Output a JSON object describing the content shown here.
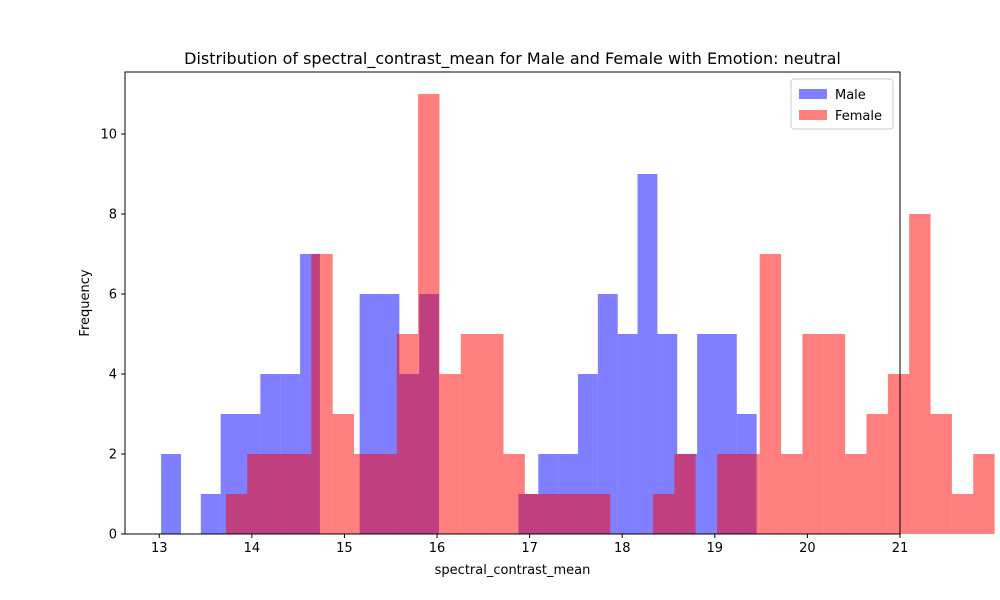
{
  "chart_data": {
    "type": "bar",
    "title": "Distribution of spectral_contrast_mean for Male and Female with Emotion: neutral",
    "xlabel": "spectral_contrast_mean",
    "ylabel": "Frequency",
    "xlim": [
      12.63,
      21.0
    ],
    "ylim": [
      0,
      11.55
    ],
    "xticks": [
      "13",
      "14",
      "15",
      "16",
      "17",
      "18",
      "19",
      "20",
      "21"
    ],
    "yticks": [
      "0",
      "2",
      "4",
      "6",
      "8",
      "10"
    ],
    "legend_position": "top-right",
    "series": [
      {
        "name": "Male",
        "color": "#0000ff",
        "opacity": 0.5,
        "bin_start": 13.02,
        "bin_width": 0.2144,
        "counts": [
          2,
          0,
          1,
          3,
          3,
          4,
          4,
          7,
          0,
          0,
          6,
          6,
          4,
          6,
          0,
          0,
          0,
          0,
          1,
          2,
          2,
          4,
          6,
          5,
          9,
          5,
          2,
          5,
          5,
          3,
          0,
          0,
          0,
          0,
          0
        ]
      },
      {
        "name": "Female",
        "color": "#ff0000",
        "opacity": 0.5,
        "bin_start": 13.72,
        "bin_width": 0.2306,
        "counts": [
          1,
          2,
          2,
          2,
          7,
          3,
          2,
          2,
          5,
          11,
          4,
          5,
          5,
          2,
          1,
          1,
          1,
          1,
          0,
          0,
          1,
          2,
          0,
          2,
          2,
          7,
          2,
          5,
          5,
          2,
          3,
          4,
          8,
          3,
          1,
          2
        ]
      }
    ]
  }
}
